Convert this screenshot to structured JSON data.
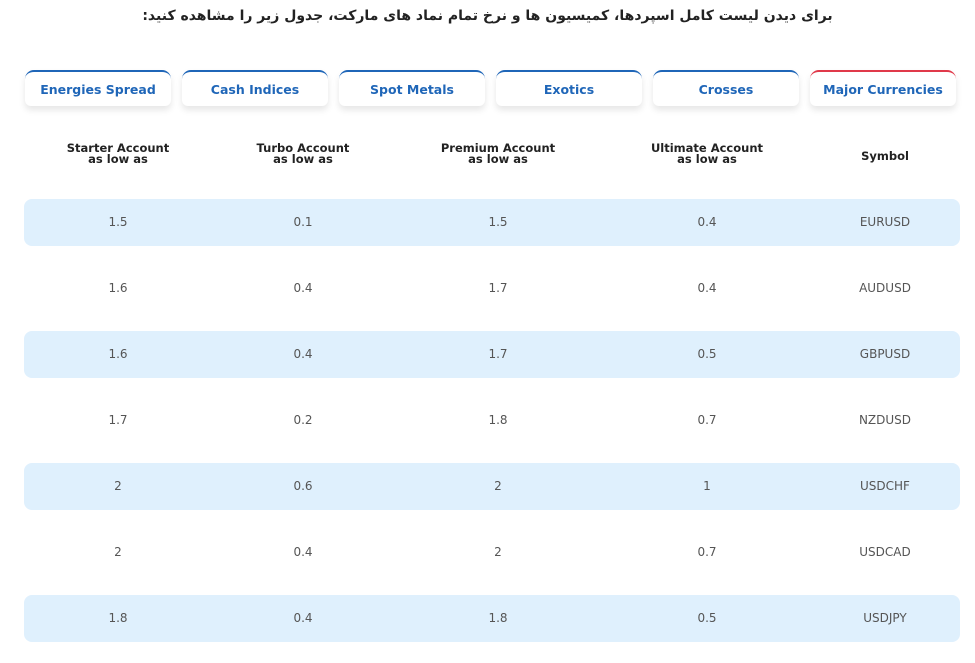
{
  "intro_text": "برای دیدن لیست کامل اسپردها، کمیسیون ها و نرخ تمام نماد های مارکت، جدول زیر را مشاهده کنید:",
  "tabs": [
    {
      "label": "Energies Spread"
    },
    {
      "label": "Cash Indices"
    },
    {
      "label": "Spot Metals"
    },
    {
      "label": "Exotics"
    },
    {
      "label": "Crosses"
    },
    {
      "label": "Major Currencies",
      "active": true
    }
  ],
  "colors": {
    "tab_accent": "#1f66b8",
    "active_accent": "#e0394a",
    "row_shade": "#dff0fd"
  },
  "table": {
    "headers": [
      {
        "line1": "Starter Account",
        "line2": "as low as"
      },
      {
        "line1": "Turbo Account",
        "line2": "as low as"
      },
      {
        "line1": "Premium Account",
        "line2": "as low as"
      },
      {
        "line1": "Ultimate Account",
        "line2": "as low as"
      },
      {
        "line1": "Symbol",
        "line2": ""
      }
    ],
    "rows": [
      [
        "1.5",
        "0.1",
        "1.5",
        "0.4",
        "EURUSD"
      ],
      [
        "1.6",
        "0.4",
        "1.7",
        "0.4",
        "AUDUSD"
      ],
      [
        "1.6",
        "0.4",
        "1.7",
        "0.5",
        "GBPUSD"
      ],
      [
        "1.7",
        "0.2",
        "1.8",
        "0.7",
        "NZDUSD"
      ],
      [
        "2",
        "0.6",
        "2",
        "1",
        "USDCHF"
      ],
      [
        "2",
        "0.4",
        "2",
        "0.7",
        "USDCAD"
      ],
      [
        "1.8",
        "0.4",
        "1.8",
        "0.5",
        "USDJPY"
      ]
    ]
  }
}
